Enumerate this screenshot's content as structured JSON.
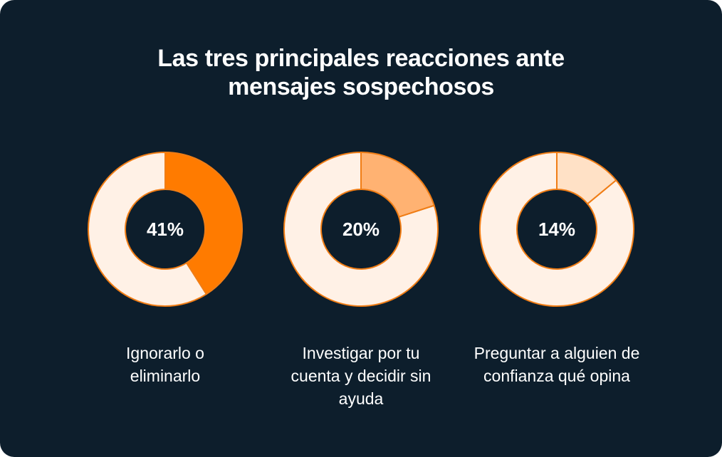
{
  "title": {
    "line1": "Las tres principales reacciones ante",
    "line2": "mensajes sospechosos"
  },
  "colors": {
    "background": "#0d1e2c",
    "track": "#fff1e6",
    "outline": "#f07d15",
    "slice_1": "#ff7b00",
    "slice_2": "#ffb272",
    "slice_3": "#ffe1c6"
  },
  "chart_data": [
    {
      "type": "pie",
      "title": "",
      "values": [
        41
      ],
      "center_label": "41%",
      "label_lines": [
        "Ignorarlo o",
        "eliminarlo"
      ]
    },
    {
      "type": "pie",
      "title": "",
      "values": [
        20
      ],
      "center_label": "20%",
      "label_lines": [
        "Investigar por tu",
        "cuenta y decidir sin",
        "ayuda"
      ]
    },
    {
      "type": "pie",
      "title": "",
      "values": [
        14
      ],
      "center_label": "14%",
      "label_lines": [
        "Preguntar a alguien de",
        "confianza qué opina"
      ]
    }
  ]
}
